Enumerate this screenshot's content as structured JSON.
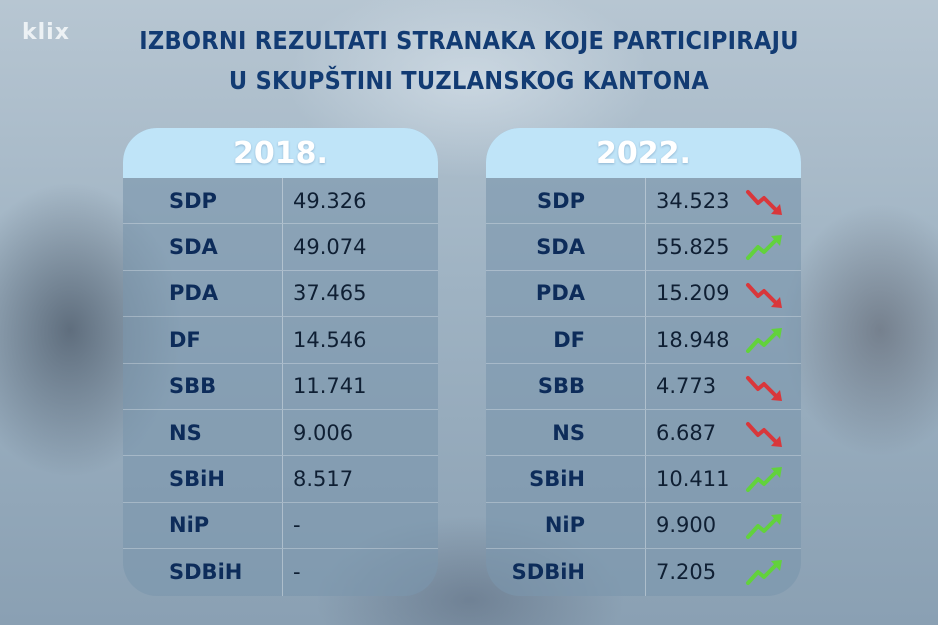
{
  "brand": "klix",
  "title": {
    "line1": "IZBORNI REZULTATI STRANAKA KOJE PARTICIPIRAJU",
    "line2": "U SKUPŠTINI TUZLANSKOG KANTONA"
  },
  "colors": {
    "up": "#62d23c",
    "down": "#d9373b",
    "title": "#123b73",
    "header_bg": "#bfe4f8"
  },
  "results_2018": {
    "year": "2018.",
    "rows": [
      {
        "party": "SDP",
        "votes": "49.326"
      },
      {
        "party": "SDA",
        "votes": "49.074"
      },
      {
        "party": "PDA",
        "votes": "37.465"
      },
      {
        "party": "DF",
        "votes": "14.546"
      },
      {
        "party": "SBB",
        "votes": "11.741"
      },
      {
        "party": "NS",
        "votes": "9.006"
      },
      {
        "party": "SBiH",
        "votes": "8.517"
      },
      {
        "party": "NiP",
        "votes": "-"
      },
      {
        "party": "SDBiH",
        "votes": "-"
      }
    ]
  },
  "results_2022": {
    "year": "2022.",
    "rows": [
      {
        "party": "SDP",
        "votes": "34.523",
        "trend": "down"
      },
      {
        "party": "SDA",
        "votes": "55.825",
        "trend": "up"
      },
      {
        "party": "PDA",
        "votes": "15.209",
        "trend": "down"
      },
      {
        "party": "DF",
        "votes": "18.948",
        "trend": "up"
      },
      {
        "party": "SBB",
        "votes": "4.773",
        "trend": "down"
      },
      {
        "party": "NS",
        "votes": "6.687",
        "trend": "down"
      },
      {
        "party": "SBiH",
        "votes": "10.411",
        "trend": "up"
      },
      {
        "party": "NiP",
        "votes": "9.900",
        "trend": "up"
      },
      {
        "party": "SDBiH",
        "votes": "7.205",
        "trend": "up"
      }
    ]
  }
}
